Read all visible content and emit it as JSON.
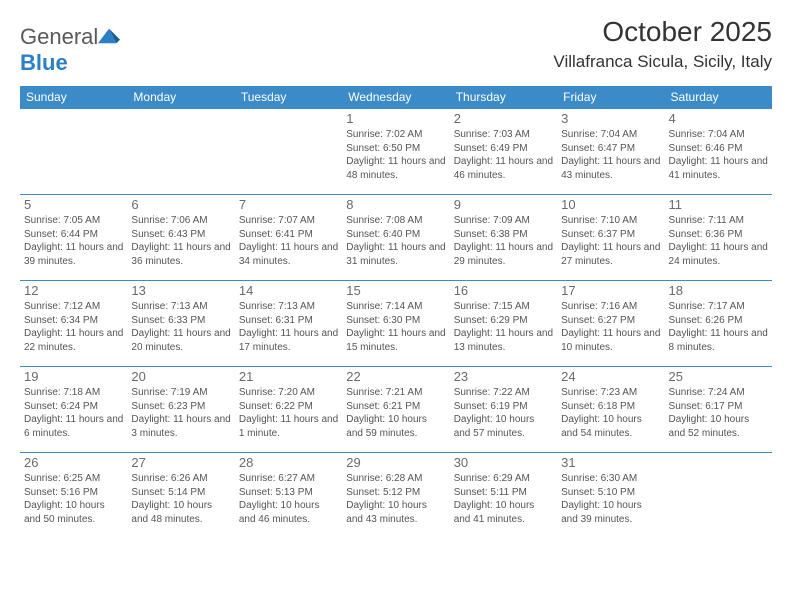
{
  "logo": {
    "text1": "General",
    "text2": "Blue"
  },
  "title": "October 2025",
  "location": "Villafranca Sicula, Sicily, Italy",
  "header_bg": "#3b8bc9",
  "border_color": "#3b8bc9",
  "weekdays": [
    "Sunday",
    "Monday",
    "Tuesday",
    "Wednesday",
    "Thursday",
    "Friday",
    "Saturday"
  ],
  "grid": [
    [
      null,
      null,
      null,
      {
        "d": "1",
        "sr": "7:02 AM",
        "ss": "6:50 PM",
        "dl": "11 hours and 48 minutes."
      },
      {
        "d": "2",
        "sr": "7:03 AM",
        "ss": "6:49 PM",
        "dl": "11 hours and 46 minutes."
      },
      {
        "d": "3",
        "sr": "7:04 AM",
        "ss": "6:47 PM",
        "dl": "11 hours and 43 minutes."
      },
      {
        "d": "4",
        "sr": "7:04 AM",
        "ss": "6:46 PM",
        "dl": "11 hours and 41 minutes."
      }
    ],
    [
      {
        "d": "5",
        "sr": "7:05 AM",
        "ss": "6:44 PM",
        "dl": "11 hours and 39 minutes."
      },
      {
        "d": "6",
        "sr": "7:06 AM",
        "ss": "6:43 PM",
        "dl": "11 hours and 36 minutes."
      },
      {
        "d": "7",
        "sr": "7:07 AM",
        "ss": "6:41 PM",
        "dl": "11 hours and 34 minutes."
      },
      {
        "d": "8",
        "sr": "7:08 AM",
        "ss": "6:40 PM",
        "dl": "11 hours and 31 minutes."
      },
      {
        "d": "9",
        "sr": "7:09 AM",
        "ss": "6:38 PM",
        "dl": "11 hours and 29 minutes."
      },
      {
        "d": "10",
        "sr": "7:10 AM",
        "ss": "6:37 PM",
        "dl": "11 hours and 27 minutes."
      },
      {
        "d": "11",
        "sr": "7:11 AM",
        "ss": "6:36 PM",
        "dl": "11 hours and 24 minutes."
      }
    ],
    [
      {
        "d": "12",
        "sr": "7:12 AM",
        "ss": "6:34 PM",
        "dl": "11 hours and 22 minutes."
      },
      {
        "d": "13",
        "sr": "7:13 AM",
        "ss": "6:33 PM",
        "dl": "11 hours and 20 minutes."
      },
      {
        "d": "14",
        "sr": "7:13 AM",
        "ss": "6:31 PM",
        "dl": "11 hours and 17 minutes."
      },
      {
        "d": "15",
        "sr": "7:14 AM",
        "ss": "6:30 PM",
        "dl": "11 hours and 15 minutes."
      },
      {
        "d": "16",
        "sr": "7:15 AM",
        "ss": "6:29 PM",
        "dl": "11 hours and 13 minutes."
      },
      {
        "d": "17",
        "sr": "7:16 AM",
        "ss": "6:27 PM",
        "dl": "11 hours and 10 minutes."
      },
      {
        "d": "18",
        "sr": "7:17 AM",
        "ss": "6:26 PM",
        "dl": "11 hours and 8 minutes."
      }
    ],
    [
      {
        "d": "19",
        "sr": "7:18 AM",
        "ss": "6:24 PM",
        "dl": "11 hours and 6 minutes."
      },
      {
        "d": "20",
        "sr": "7:19 AM",
        "ss": "6:23 PM",
        "dl": "11 hours and 3 minutes."
      },
      {
        "d": "21",
        "sr": "7:20 AM",
        "ss": "6:22 PM",
        "dl": "11 hours and 1 minute."
      },
      {
        "d": "22",
        "sr": "7:21 AM",
        "ss": "6:21 PM",
        "dl": "10 hours and 59 minutes."
      },
      {
        "d": "23",
        "sr": "7:22 AM",
        "ss": "6:19 PM",
        "dl": "10 hours and 57 minutes."
      },
      {
        "d": "24",
        "sr": "7:23 AM",
        "ss": "6:18 PM",
        "dl": "10 hours and 54 minutes."
      },
      {
        "d": "25",
        "sr": "7:24 AM",
        "ss": "6:17 PM",
        "dl": "10 hours and 52 minutes."
      }
    ],
    [
      {
        "d": "26",
        "sr": "6:25 AM",
        "ss": "5:16 PM",
        "dl": "10 hours and 50 minutes."
      },
      {
        "d": "27",
        "sr": "6:26 AM",
        "ss": "5:14 PM",
        "dl": "10 hours and 48 minutes."
      },
      {
        "d": "28",
        "sr": "6:27 AM",
        "ss": "5:13 PM",
        "dl": "10 hours and 46 minutes."
      },
      {
        "d": "29",
        "sr": "6:28 AM",
        "ss": "5:12 PM",
        "dl": "10 hours and 43 minutes."
      },
      {
        "d": "30",
        "sr": "6:29 AM",
        "ss": "5:11 PM",
        "dl": "10 hours and 41 minutes."
      },
      {
        "d": "31",
        "sr": "6:30 AM",
        "ss": "5:10 PM",
        "dl": "10 hours and 39 minutes."
      },
      null
    ]
  ],
  "labels": {
    "sunrise": "Sunrise:",
    "sunset": "Sunset:",
    "daylight": "Daylight:"
  }
}
